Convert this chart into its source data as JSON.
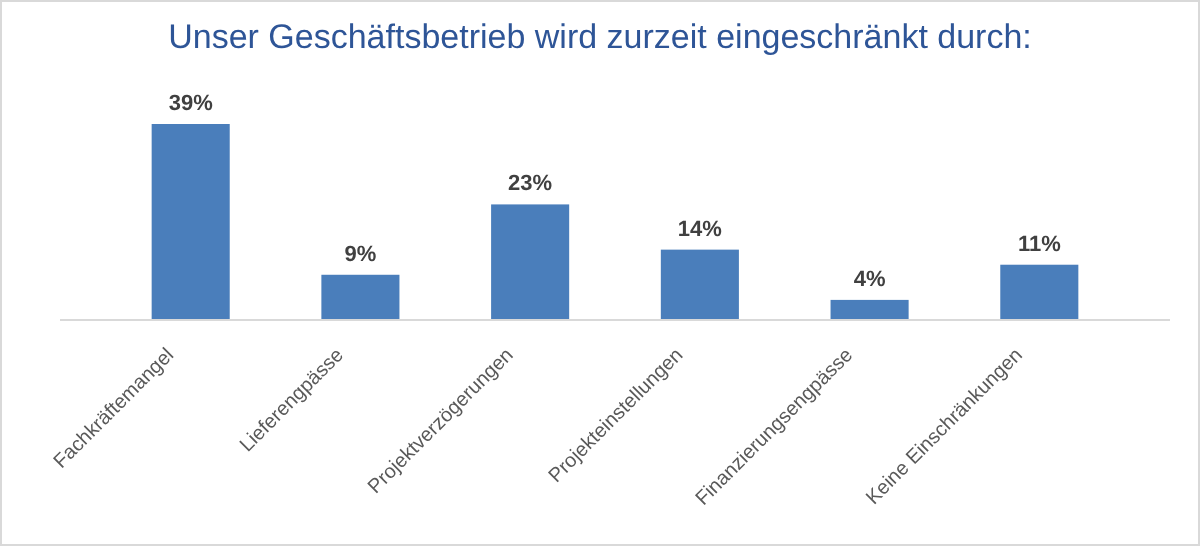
{
  "chart_data": {
    "type": "bar",
    "title": "Unser Geschäftsbetrieb wird zurzeit eingeschränkt durch:",
    "categories": [
      "Fachkräftemangel",
      "Lieferengpässe",
      "Projektverzögerungen",
      "Projekteinstellungen",
      "Finanzierungsengpässe",
      "Keine Einschränkungen"
    ],
    "values": [
      39,
      9,
      23,
      14,
      4,
      11
    ],
    "value_labels": [
      "39%",
      "9%",
      "23%",
      "14%",
      "4%",
      "11%"
    ],
    "color": "#4a7ebb"
  }
}
